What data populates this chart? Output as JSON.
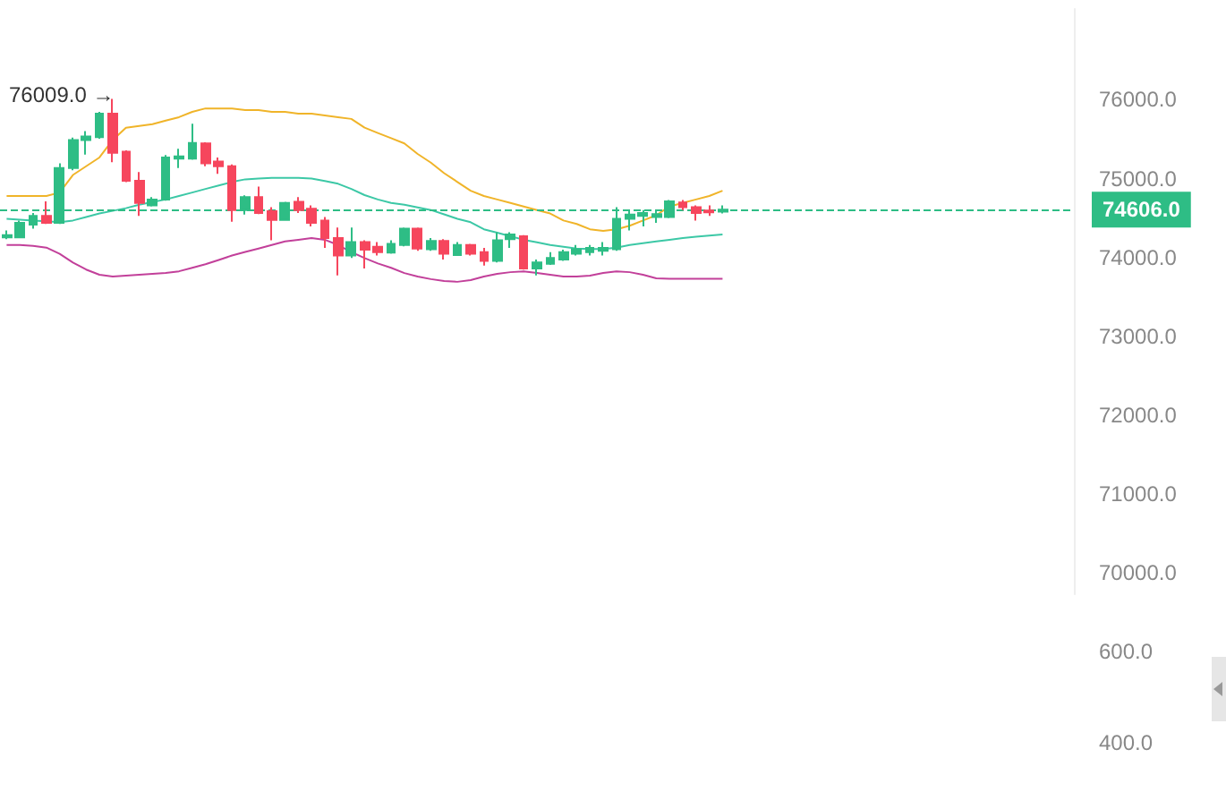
{
  "chart_data": [
    {
      "type": "candlestick",
      "categories": [
        null,
        null,
        null,
        null,
        null,
        null,
        null,
        null,
        null,
        null,
        null,
        null,
        null,
        null,
        null,
        null,
        null,
        null,
        null,
        null,
        null,
        null,
        null,
        null,
        null,
        null,
        null,
        null,
        null,
        null,
        null,
        null,
        null,
        null,
        null,
        null,
        null,
        null,
        null,
        null,
        null,
        null,
        null,
        null,
        null,
        null,
        null,
        null,
        null,
        null,
        null,
        null,
        null,
        null,
        null
      ],
      "series": [
        {
          "type": "candlestick",
          "ohlc": [
            [
              74253,
              74342,
              74231,
              74283
            ],
            [
              74253,
              74468,
              74246,
              74438
            ],
            [
              74416,
              74564,
              74364,
              74527
            ],
            [
              74527,
              74712,
              74423,
              74438
            ],
            [
              74438,
              75193,
              74423,
              75134
            ],
            [
              75134,
              75519,
              75104,
              75489
            ],
            [
              75489,
              75600,
              75304,
              75533
            ],
            [
              75526,
              75844,
              75504,
              75822
            ],
            [
              75822,
              76009,
              75208,
              75326
            ],
            [
              75341,
              75356,
              74956,
              74971
            ],
            [
              74971,
              75082,
              74527,
              74690
            ],
            [
              74660,
              74764,
              74645,
              74734
            ],
            [
              74734,
              75297,
              74719,
              75267
            ],
            [
              75252,
              75378,
              75134,
              75282
            ],
            [
              75252,
              75696,
              75237,
              75452
            ],
            [
              75445,
              75459,
              75156,
              75193
            ],
            [
              75215,
              75267,
              75060,
              75156
            ],
            [
              75156,
              75178,
              74453,
              74601
            ],
            [
              74601,
              74786,
              74542,
              74764
            ],
            [
              74764,
              74897,
              74549,
              74564
            ],
            [
              74586,
              74638,
              74216,
              74475
            ],
            [
              74475,
              74705,
              74468,
              74690
            ],
            [
              74705,
              74764,
              74564,
              74601
            ],
            [
              74616,
              74660,
              74394,
              74438
            ],
            [
              74468,
              74512,
              74120,
              74246
            ],
            [
              74246,
              74379,
              73772,
              74024
            ],
            [
              74024,
              74379,
              73994,
              74194
            ],
            [
              74194,
              74216,
              73861,
              74098
            ],
            [
              74135,
              74194,
              74024,
              74068
            ],
            [
              74061,
              74216,
              74046,
              74172
            ],
            [
              74157,
              74379,
              74142,
              74364
            ],
            [
              74364,
              74379,
              74083,
              74113
            ],
            [
              74105,
              74246,
              74083,
              74209
            ],
            [
              74209,
              74231,
              73972,
              74046
            ],
            [
              74031,
              74194,
              74024,
              74157
            ],
            [
              74157,
              74172,
              74024,
              74046
            ],
            [
              74068,
              74120,
              73898,
              73957
            ],
            [
              73957,
              74320,
              73935,
              74216
            ],
            [
              74231,
              74320,
              74120,
              74290
            ],
            [
              74268,
              74283,
              73846,
              73861
            ],
            [
              73861,
              73972,
              73772,
              73935
            ],
            [
              73920,
              74068,
              73905,
              73994
            ],
            [
              73972,
              74098,
              73957,
              74068
            ],
            [
              74046,
              74157,
              74024,
              74105
            ],
            [
              74068,
              74157,
              74024,
              74120
            ],
            [
              74083,
              74194,
              74024,
              74120
            ],
            [
              74105,
              74638,
              74083,
              74490
            ],
            [
              74490,
              74601,
              74342,
              74542
            ],
            [
              74527,
              74601,
              74394,
              74564
            ],
            [
              74512,
              74601,
              74438,
              74549
            ],
            [
              74512,
              74727,
              74497,
              74712
            ],
            [
              74697,
              74727,
              74601,
              74638
            ],
            [
              74638,
              74660,
              74468,
              74564
            ],
            [
              74594,
              74660,
              74527,
              74571
            ],
            [
              74579,
              74660,
              74557,
              74606
            ]
          ],
          "colors": [
            "#2ebd85",
            "#2ebd85",
            "#2ebd85",
            "#f6465d",
            "#2ebd85",
            "#2ebd85",
            "#2ebd85",
            "#2ebd85",
            "#f6465d",
            "#f6465d",
            "#f6465d",
            "#2ebd85",
            "#2ebd85",
            "#2ebd85",
            "#2ebd85",
            "#f6465d",
            "#f6465d",
            "#f6465d",
            "#2ebd85",
            "#f6465d",
            "#f6465d",
            "#2ebd85",
            "#f6465d",
            "#f6465d",
            "#f6465d",
            "#f6465d",
            "#2ebd85",
            "#f6465d",
            "#f6465d",
            "#2ebd85",
            "#2ebd85",
            "#f6465d",
            "#2ebd85",
            "#f6465d",
            "#2ebd85",
            "#f6465d",
            "#f6465d",
            "#2ebd85",
            "#2ebd85",
            "#f6465d",
            "#2ebd85",
            "#2ebd85",
            "#2ebd85",
            "#2ebd85",
            "#2ebd85",
            "#2ebd85",
            "#2ebd85",
            "#2ebd85",
            "#2ebd85",
            "#2ebd85",
            "#2ebd85",
            "#f6465d",
            "#f6465d",
            "#f6465d",
            "#2ebd85"
          ]
        },
        {
          "type": "line",
          "color": "#f0b429",
          "values": [
            74779,
            74779,
            74779,
            74779,
            74823,
            75045,
            75156,
            75267,
            75489,
            75645,
            75667,
            75689,
            75734,
            75778,
            75845,
            75889,
            75889,
            75889,
            75867,
            75867,
            75845,
            75845,
            75822,
            75822,
            75800,
            75778,
            75756,
            75645,
            75578,
            75512,
            75445,
            75312,
            75201,
            75068,
            74957,
            74846,
            74779,
            74735,
            74690,
            74646,
            74601,
            74557,
            74468,
            74424,
            74357,
            74335,
            74357,
            74401,
            74468,
            74535,
            74646,
            74690,
            74735,
            74779,
            74846
          ]
        },
        {
          "type": "line",
          "color": "#3cc8a6",
          "values": [
            74490,
            74479,
            74468,
            74457,
            74446,
            74468,
            74513,
            74557,
            74590,
            74624,
            74668,
            74701,
            74735,
            74779,
            74823,
            74868,
            74912,
            74957,
            74990,
            75001,
            75008,
            75008,
            75008,
            75001,
            74968,
            74934,
            74868,
            74790,
            74735,
            74690,
            74668,
            74635,
            74601,
            74546,
            74490,
            74446,
            74357,
            74313,
            74268,
            74224,
            74191,
            74157,
            74135,
            74113,
            74106,
            74106,
            74124,
            74157,
            74180,
            74202,
            74224,
            74246,
            74262,
            74277,
            74291
          ]
        },
        {
          "type": "line",
          "color": "#c2409a",
          "values": [
            74157,
            74157,
            74146,
            74124,
            74046,
            73935,
            73846,
            73780,
            73757,
            73769,
            73780,
            73791,
            73802,
            73824,
            73868,
            73913,
            73968,
            74024,
            74069,
            74113,
            74157,
            74202,
            74224,
            74246,
            74224,
            74157,
            74069,
            73991,
            73924,
            73868,
            73802,
            73758,
            73725,
            73702,
            73691,
            73713,
            73758,
            73791,
            73813,
            73824,
            73802,
            73780,
            73758,
            73758,
            73769,
            73802,
            73824,
            73813,
            73780,
            73735,
            73729,
            73729,
            73729,
            73729,
            73729
          ]
        }
      ],
      "ylim": [
        69730,
        77150
      ],
      "yticks": [
        {
          "value": 70000,
          "label": "70000.0"
        },
        {
          "value": 71000,
          "label": "71000.0"
        },
        {
          "value": 72000,
          "label": "72000.0"
        },
        {
          "value": 73000,
          "label": "73000.0"
        },
        {
          "value": 74000,
          "label": "74000.0"
        },
        {
          "value": 75000,
          "label": "75000.0"
        },
        {
          "value": 76000,
          "label": "76000.0"
        }
      ],
      "ref_lines": [
        {
          "axis": "y",
          "value": 74606,
          "label": "74606.0",
          "color": "#2ebd85",
          "line_style": "dashed"
        }
      ],
      "annotations": [
        "76009.0 →"
      ],
      "marker": "none",
      "grid": false
    },
    {
      "type": "other",
      "annotations": [
        "600.0",
        "400.0"
      ]
    }
  ]
}
